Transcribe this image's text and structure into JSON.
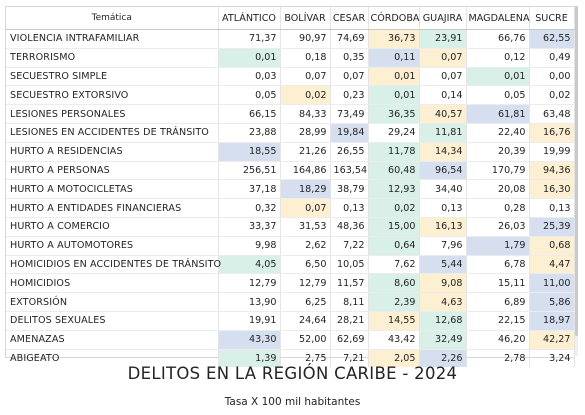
{
  "table": {
    "headers": [
      "Temática",
      "ATLÁNTICO",
      "BOLÍVAR",
      "CESAR",
      "CÓRDOBA",
      "GUAJIRA",
      "MAGDALENA",
      "SUCRE"
    ],
    "rows": [
      {
        "name": "VIOLENCIA INTRAFAMILIAR",
        "values": [
          "71,37",
          "90,97",
          "74,69",
          "36,73",
          "23,91",
          "66,76",
          "62,55"
        ]
      },
      {
        "name": "TERRORISMO",
        "values": [
          "0,01",
          "0,18",
          "0,35",
          "0,11",
          "0,07",
          "0,12",
          "0,49"
        ]
      },
      {
        "name": "SECUESTRO SIMPLE",
        "values": [
          "0,03",
          "0,07",
          "0,07",
          "0,01",
          "0,07",
          "0,01",
          "0,00"
        ]
      },
      {
        "name": "SECUESTRO EXTORSIVO",
        "values": [
          "0,05",
          "0,02",
          "0,23",
          "0,01",
          "0,14",
          "0,05",
          "0,02"
        ]
      },
      {
        "name": "LESIONES PERSONALES",
        "values": [
          "66,15",
          "84,33",
          "73,49",
          "36,35",
          "40,57",
          "61,81",
          "63,48"
        ]
      },
      {
        "name": "LESIONES EN ACCIDENTES DE TRÁNSITO",
        "values": [
          "23,88",
          "28,99",
          "19,84",
          "29,24",
          "11,81",
          "22,40",
          "16,76"
        ]
      },
      {
        "name": "HURTO A RESIDENCIAS",
        "values": [
          "18,55",
          "21,26",
          "26,55",
          "11,78",
          "14,34",
          "20,39",
          "19,99"
        ]
      },
      {
        "name": "HURTO A PERSONAS",
        "values": [
          "256,51",
          "164,86",
          "163,54",
          "60,48",
          "96,54",
          "170,79",
          "94,36"
        ]
      },
      {
        "name": "HURTO A MOTOCICLETAS",
        "values": [
          "37,18",
          "18,29",
          "38,79",
          "12,93",
          "34,40",
          "20,08",
          "16,30"
        ]
      },
      {
        "name": "HURTO A ENTIDADES FINANCIERAS",
        "values": [
          "0,32",
          "0,07",
          "0,13",
          "0,02",
          "0,13",
          "0,28",
          "0,13"
        ]
      },
      {
        "name": "HURTO A COMERCIO",
        "values": [
          "33,37",
          "31,53",
          "48,36",
          "15,00",
          "16,13",
          "26,03",
          "25,39"
        ]
      },
      {
        "name": "HURTO A AUTOMOTORES",
        "values": [
          "9,98",
          "2,62",
          "7,22",
          "0,64",
          "7,96",
          "1,79",
          "0,68"
        ]
      },
      {
        "name": "HOMICIDIOS EN ACCIDENTES DE TRÁNSITO",
        "values": [
          "4,05",
          "6,50",
          "10,05",
          "7,62",
          "5,44",
          "6,78",
          "4,47"
        ]
      },
      {
        "name": "HOMICIDIOS",
        "values": [
          "12,79",
          "12,79",
          "11,57",
          "8,60",
          "9,08",
          "15,11",
          "11,00"
        ]
      },
      {
        "name": "EXTORSIÓN",
        "values": [
          "13,90",
          "6,25",
          "8,11",
          "2,39",
          "4,63",
          "6,89",
          "5,86"
        ]
      },
      {
        "name": "DELITOS SEXUALES",
        "values": [
          "19,91",
          "24,64",
          "28,21",
          "14,55",
          "12,68",
          "22,15",
          "18,97"
        ]
      },
      {
        "name": "AMENAZAS",
        "values": [
          "43,30",
          "52,00",
          "62,69",
          "43,42",
          "32,49",
          "46,20",
          "42,27"
        ]
      },
      {
        "name": "ABIGEATO",
        "values": [
          "1,39",
          "2,75",
          "7,21",
          "2,05",
          "2,26",
          "2,78",
          "3,24"
        ]
      }
    ]
  },
  "cell_colors": [
    [
      "",
      "",
      "",
      "#fcefd2",
      "#d9f0e8",
      "",
      "#d5dff0"
    ],
    [
      "#d9f0e8",
      "",
      "",
      "#d5dff0",
      "#fcefd2",
      "",
      ""
    ],
    [
      "",
      "",
      "",
      "#fcefd2",
      "",
      "#d9f0e8",
      ""
    ],
    [
      "",
      "#fcefd2",
      "",
      "#d9f0e8",
      "",
      "",
      ""
    ],
    [
      "",
      "",
      "",
      "#d9f0e8",
      "#fcefd2",
      "#d5dff0",
      ""
    ],
    [
      "",
      "",
      "#d5dff0",
      "",
      "#d9f0e8",
      "",
      "#fcefd2"
    ],
    [
      "#d5dff0",
      "",
      "",
      "#d9f0e8",
      "#fcefd2",
      "",
      ""
    ],
    [
      "",
      "",
      "",
      "#d9f0e8",
      "#d5dff0",
      "",
      "#fcefd2"
    ],
    [
      "",
      "#d5dff0",
      "",
      "#d9f0e8",
      "",
      "",
      "#fcefd2"
    ],
    [
      "",
      "#fcefd2",
      "",
      "#d9f0e8",
      "",
      "",
      ""
    ],
    [
      "",
      "",
      "",
      "#d9f0e8",
      "#fcefd2",
      "",
      "#d5dff0"
    ],
    [
      "",
      "",
      "",
      "#d9f0e8",
      "",
      "#d5dff0",
      "#fcefd2"
    ],
    [
      "#d9f0e8",
      "",
      "",
      "",
      "#d5dff0",
      "",
      "#fcefd2"
    ],
    [
      "",
      "",
      "",
      "#d9f0e8",
      "#fcefd2",
      "",
      "#d5dff0"
    ],
    [
      "",
      "",
      "",
      "#d9f0e8",
      "#fcefd2",
      "",
      "#d5dff0"
    ],
    [
      "",
      "",
      "",
      "#fcefd2",
      "#d9f0e8",
      "",
      "#d5dff0"
    ],
    [
      "#d5dff0",
      "",
      "",
      "",
      "#d9f0e8",
      "",
      "#fcefd2"
    ],
    [
      "#d9f0e8",
      "",
      "",
      "#fcefd2",
      "#d5dff0",
      "",
      ""
    ]
  ],
  "title": "DELITOS EN LA REGIÓN CARIBE - 2024",
  "subtitle": "Tasa X 100 mil habitantes"
}
